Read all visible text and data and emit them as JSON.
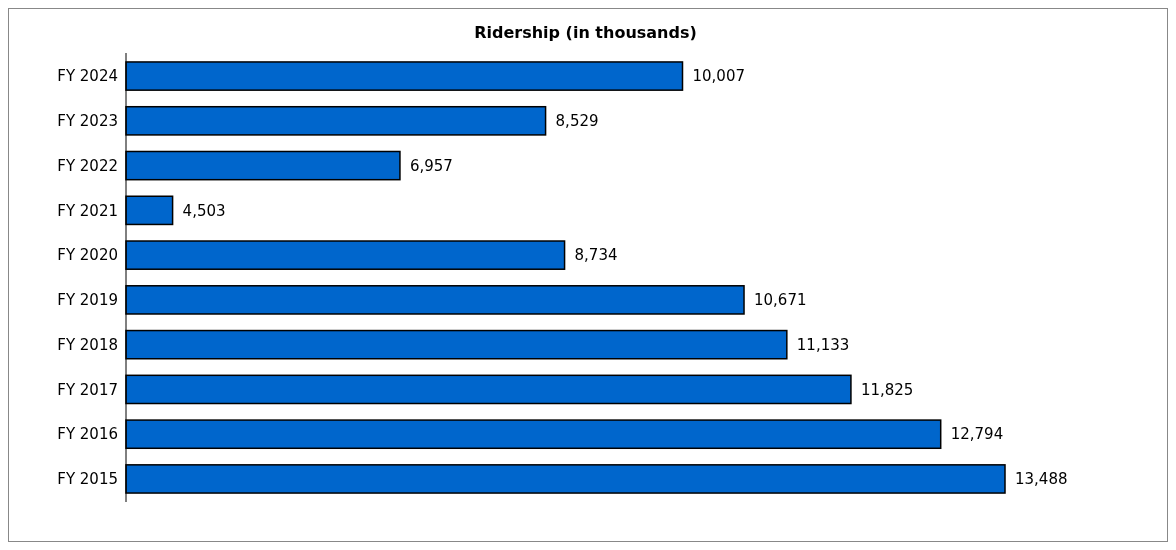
{
  "chart_data": {
    "type": "bar",
    "orientation": "horizontal",
    "title": "Ridership (in thousands)",
    "categories": [
      "FY 2024",
      "FY 2023",
      "FY 2022",
      "FY 2021",
      "FY 2020",
      "FY 2019",
      "FY 2018",
      "FY 2017",
      "FY 2016",
      "FY 2015"
    ],
    "values": [
      10007,
      8529,
      6957,
      4503,
      8734,
      10671,
      11133,
      11825,
      12794,
      13488
    ],
    "value_labels": [
      "10,007",
      "8,529",
      "6,957",
      "4,503",
      "8,734",
      "10,671",
      "11,133",
      "11,825",
      "12,794",
      "13,488"
    ],
    "color": "#0066cc",
    "xlim": [
      4000,
      13488
    ],
    "tick_labels": "y"
  }
}
